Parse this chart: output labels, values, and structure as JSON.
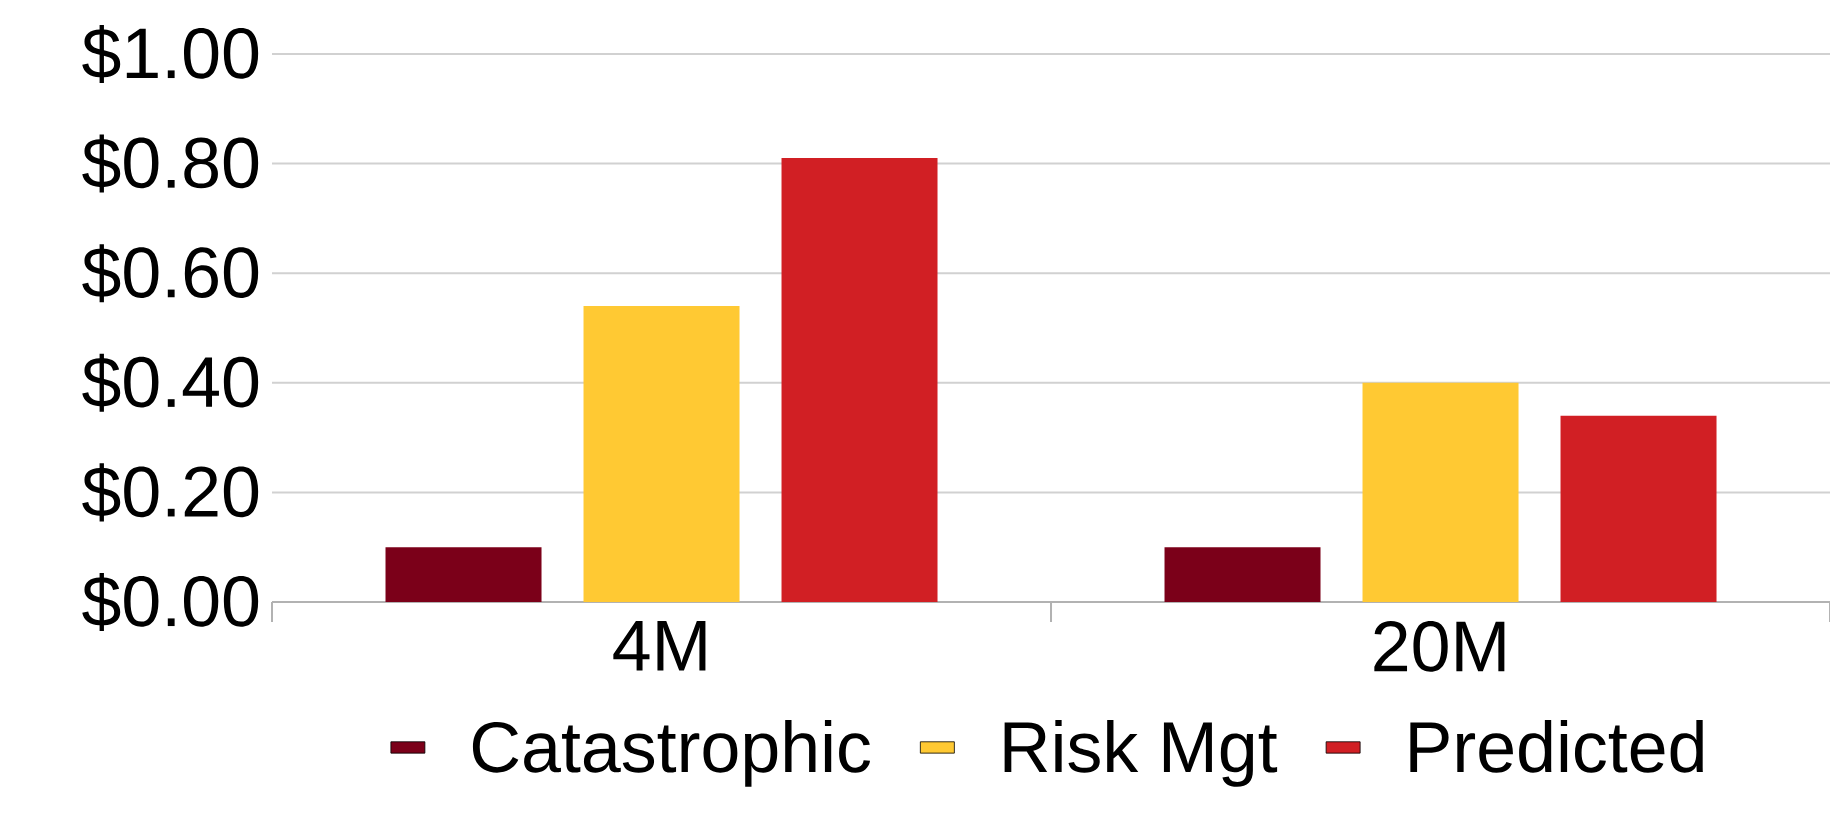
{
  "chart_data": {
    "type": "bar",
    "categories": [
      "4M",
      "20M"
    ],
    "series": [
      {
        "name": "Catastrophic",
        "color": "#7b0019",
        "values": [
          0.1,
          0.1
        ]
      },
      {
        "name": "Risk Mgt",
        "color": "#ffc933",
        "values": [
          0.54,
          0.4
        ]
      },
      {
        "name": "Predicted",
        "color": "#d11f24",
        "values": [
          0.81,
          0.34
        ]
      }
    ],
    "ylim": [
      0,
      1
    ],
    "yticks": [
      {
        "value": 0,
        "label": "$0.00"
      },
      {
        "value": 0.2,
        "label": "$0.20"
      },
      {
        "value": 0.4,
        "label": "$0.40"
      },
      {
        "value": 0.6,
        "label": "$0.60"
      },
      {
        "value": 0.8,
        "label": "$0.80"
      },
      {
        "value": 1.0,
        "label": "$1.00"
      }
    ],
    "grid": "y",
    "legend": "bottom"
  }
}
